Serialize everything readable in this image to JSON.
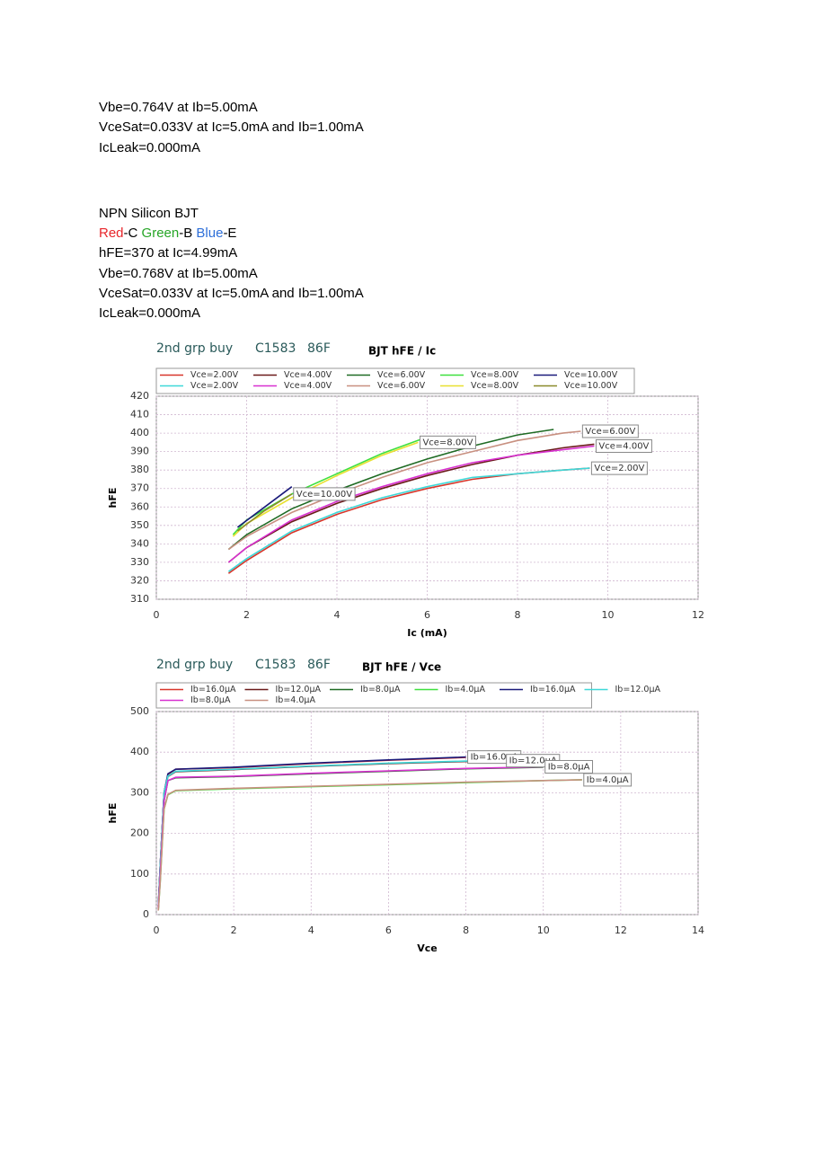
{
  "intro_lines": [
    "Vbe=0.764V at Ib=5.00mA",
    "VceSat=0.033V at Ic=5.0mA and Ib=1.00mA",
    "IcLeak=0.000mA"
  ],
  "device": {
    "heading": "NPN Silicon BJT",
    "pinout": [
      {
        "text": "Red",
        "color": "#e8262b"
      },
      {
        "text": "-C"
      },
      {
        "text": "Green",
        "color": "#26a526"
      },
      {
        "text": "-B"
      },
      {
        "text": "Blue",
        "color": "#2e6fd8"
      },
      {
        "text": "-E"
      }
    ],
    "lines": [
      "hFE=370 at Ic=4.99mA",
      "Vbe=0.768V at Ib=5.00mA",
      "VceSat=0.033V at Ic=5.0mA and Ib=1.00mA",
      "IcLeak=0.000mA"
    ]
  },
  "chart_data": [
    {
      "type": "line",
      "group": "2nd grp buy",
      "part": "C1583",
      "code": "86F",
      "title": "BJT hFE / Ic",
      "x_label": "Ic (mA)",
      "y_label": "hFE",
      "xlim": [
        0,
        12
      ],
      "xticks": [
        0,
        2,
        4,
        6,
        8,
        10,
        12
      ],
      "ylim": [
        310,
        420
      ],
      "yticks": [
        310,
        320,
        330,
        340,
        350,
        360,
        370,
        380,
        390,
        400,
        410,
        420
      ],
      "grid": true,
      "series": [
        {
          "name": "Vce=2.00V",
          "color": "#d8352a",
          "x": [
            1.6,
            2,
            3,
            4,
            5,
            6,
            7,
            8,
            9,
            9.6
          ],
          "values": [
            324,
            331,
            346,
            356,
            364,
            370,
            375,
            378,
            380,
            381
          ]
        },
        {
          "name": "Vce=4.00V",
          "color": "#6b1a1a",
          "x": [
            1.6,
            2,
            3,
            4,
            5,
            6,
            7,
            8,
            9,
            9.7
          ],
          "values": [
            330,
            338,
            352,
            362,
            370,
            377,
            383,
            388,
            392,
            394
          ]
        },
        {
          "name": "Vce=6.00V",
          "color": "#1f6b24",
          "x": [
            1.6,
            2,
            3,
            4,
            5,
            6,
            7,
            8,
            8.8
          ],
          "values": [
            337,
            345,
            359,
            369,
            378,
            386,
            393,
            399,
            402
          ]
        },
        {
          "name": "Vce=8.00V",
          "color": "#3ee03e",
          "x": [
            1.7,
            2,
            3,
            4,
            5,
            5.9
          ],
          "values": [
            345,
            353,
            367,
            378,
            389,
            397
          ]
        },
        {
          "name": "Vce=10.00V",
          "color": "#1a1a7a",
          "x": [
            1.8,
            2.4,
            3
          ],
          "values": [
            349,
            360,
            371
          ]
        },
        {
          "name": "Vce=2.00V",
          "color": "#3ed8d8",
          "x": [
            1.6,
            2,
            3,
            4,
            5,
            6,
            7,
            8,
            9,
            9.6
          ],
          "values": [
            325,
            332,
            347,
            357,
            365,
            371,
            376,
            378,
            380,
            381
          ],
          "label": "Vce=2.00V"
        },
        {
          "name": "Vce=4.00V",
          "color": "#d830d0",
          "x": [
            1.6,
            2,
            3,
            4,
            5,
            6,
            7,
            8,
            9,
            9.7
          ],
          "values": [
            330,
            338,
            353,
            363,
            371,
            378,
            384,
            388,
            391,
            393
          ],
          "label": "Vce=4.00V"
        },
        {
          "name": "Vce=6.00V",
          "color": "#c89080",
          "x": [
            1.6,
            2,
            3,
            4,
            5,
            6,
            7,
            8,
            9,
            9.4
          ],
          "values": [
            337,
            344,
            357,
            367,
            376,
            384,
            390,
            396,
            400,
            401
          ],
          "label": "Vce=6.00V"
        },
        {
          "name": "Vce=8.00V",
          "color": "#e8e030",
          "x": [
            1.7,
            2,
            3,
            4,
            5,
            5.8
          ],
          "values": [
            344,
            351,
            365,
            377,
            388,
            395
          ],
          "label": "Vce=8.00V"
        },
        {
          "name": "Vce=10.00V",
          "color": "#8a8a2a",
          "x": [
            1.8,
            2.4,
            3
          ],
          "values": [
            347,
            358,
            367
          ],
          "label": "Vce=10.00V"
        }
      ]
    },
    {
      "type": "line",
      "group": "2nd grp buy",
      "part": "C1583",
      "code": "86F",
      "title": "BJT hFE / Vce",
      "x_label": "Vce",
      "y_label": "hFE",
      "xlim": [
        0,
        14
      ],
      "xticks": [
        0,
        2,
        4,
        6,
        8,
        10,
        12,
        14
      ],
      "ylim": [
        0,
        500
      ],
      "yticks": [
        0,
        100,
        200,
        300,
        400,
        500
      ],
      "grid": true,
      "series": [
        {
          "name": "Ib=16.0μA",
          "color": "#d8352a",
          "x": [
            0.05,
            0.1,
            0.2,
            0.3,
            0.5,
            2,
            4,
            6,
            8
          ],
          "values": [
            20,
            120,
            300,
            345,
            358,
            362,
            372,
            380,
            387
          ]
        },
        {
          "name": "Ib=12.0μA",
          "color": "#6b1a1a",
          "x": [
            0.05,
            0.1,
            0.2,
            0.3,
            0.5,
            2,
            4,
            6,
            8,
            9
          ],
          "values": [
            20,
            120,
            300,
            340,
            352,
            357,
            365,
            372,
            377,
            378
          ]
        },
        {
          "name": "Ib=8.0μA",
          "color": "#1f6b24",
          "x": [
            0.05,
            0.1,
            0.2,
            0.3,
            0.5,
            2,
            4,
            6,
            8,
            10
          ],
          "values": [
            15,
            100,
            280,
            330,
            337,
            340,
            347,
            353,
            359,
            363
          ]
        },
        {
          "name": "Ib=4.0μA",
          "color": "#3ee03e",
          "x": [
            0.05,
            0.1,
            0.2,
            0.3,
            0.5,
            2,
            4,
            6,
            8,
            10,
            11
          ],
          "values": [
            10,
            80,
            260,
            295,
            305,
            310,
            315,
            320,
            325,
            330,
            332
          ]
        },
        {
          "name": "Ib=16.0μA",
          "color": "#1a1a7a",
          "x": [
            0.05,
            0.1,
            0.2,
            0.3,
            0.5,
            2,
            4,
            6,
            8
          ],
          "values": [
            20,
            120,
            300,
            347,
            358,
            363,
            373,
            381,
            388
          ],
          "label": "Ib=16.0μA"
        },
        {
          "name": "Ib=12.0μA",
          "color": "#3ed8d8",
          "x": [
            0.05,
            0.1,
            0.2,
            0.3,
            0.5,
            2,
            4,
            6,
            8,
            9
          ],
          "values": [
            20,
            120,
            300,
            341,
            353,
            358,
            366,
            373,
            378,
            379
          ],
          "label": "Ib=12.0μA"
        },
        {
          "name": "Ib=8.0μA",
          "color": "#d830d0",
          "x": [
            0.05,
            0.1,
            0.2,
            0.3,
            0.5,
            2,
            4,
            6,
            8,
            10
          ],
          "values": [
            15,
            100,
            280,
            330,
            338,
            341,
            348,
            354,
            360,
            364
          ],
          "label": "Ib=8.0μA"
        },
        {
          "name": "Ib=4.0μA",
          "color": "#c89080",
          "x": [
            0.05,
            0.1,
            0.2,
            0.3,
            0.5,
            2,
            4,
            6,
            8,
            10,
            11
          ],
          "values": [
            10,
            80,
            260,
            296,
            306,
            311,
            316,
            321,
            326,
            330,
            332
          ],
          "label": "Ib=4.0μA"
        }
      ]
    }
  ]
}
